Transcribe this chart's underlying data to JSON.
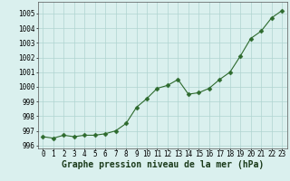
{
  "x": [
    0,
    1,
    2,
    3,
    4,
    5,
    6,
    7,
    8,
    9,
    10,
    11,
    12,
    13,
    14,
    15,
    16,
    17,
    18,
    19,
    20,
    21,
    22,
    23
  ],
  "y": [
    996.6,
    996.5,
    996.7,
    996.6,
    996.7,
    996.7,
    996.8,
    997.0,
    997.5,
    998.6,
    999.2,
    999.9,
    1000.1,
    1000.5,
    999.5,
    999.6,
    999.9,
    1000.5,
    1001.0,
    1002.1,
    1003.3,
    1003.8,
    1004.7,
    1005.2
  ],
  "line_color": "#2d6a2d",
  "marker": "D",
  "marker_size": 2.5,
  "bg_color": "#daf0ee",
  "grid_color": "#b0d4d0",
  "xlabel": "Graphe pression niveau de la mer (hPa)",
  "xlabel_fontsize": 7,
  "ylim": [
    995.8,
    1005.8
  ],
  "yticks": [
    996,
    997,
    998,
    999,
    1000,
    1001,
    1002,
    1003,
    1004,
    1005
  ],
  "xticks": [
    0,
    1,
    2,
    3,
    4,
    5,
    6,
    7,
    8,
    9,
    10,
    11,
    12,
    13,
    14,
    15,
    16,
    17,
    18,
    19,
    20,
    21,
    22,
    23
  ],
  "tick_fontsize": 5.5,
  "spine_color": "#555555"
}
